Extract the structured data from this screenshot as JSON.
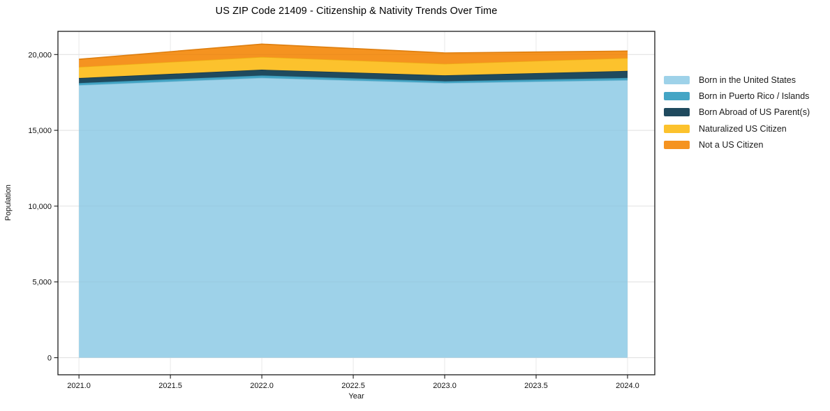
{
  "chart_data": {
    "type": "area",
    "stacked": true,
    "title": "US ZIP Code 21409 - Citizenship & Nativity Trends Over Time",
    "xlabel": "Year",
    "ylabel": "Population",
    "x": [
      2021,
      2022,
      2023,
      2024
    ],
    "series": [
      {
        "name": "Born in the United States",
        "color": "#9ED2E9",
        "edge": "#86C0DA",
        "values": [
          17980,
          18460,
          18120,
          18310
        ]
      },
      {
        "name": "Born in Puerto Rico / Islands",
        "color": "#44A5C5",
        "edge": "#3892B0",
        "values": [
          140,
          160,
          120,
          150
        ]
      },
      {
        "name": "Born Abroad of US Parent(s)",
        "color": "#1F4A5E",
        "edge": "#16384A",
        "values": [
          330,
          380,
          390,
          460
        ]
      },
      {
        "name": "Naturalized US Citizen",
        "color": "#FCC22D",
        "edge": "#EFAC15",
        "values": [
          730,
          840,
          760,
          850
        ]
      },
      {
        "name": "Not a US Citizen",
        "color": "#F59320",
        "edge": "#DE7E0E",
        "values": [
          510,
          850,
          715,
          460
        ]
      }
    ],
    "x_ticks": [
      2021.0,
      2021.5,
      2022.0,
      2022.5,
      2023.0,
      2023.5,
      2024.0
    ],
    "x_tick_labels": [
      "2021.0",
      "2021.5",
      "2022.0",
      "2022.5",
      "2023.0",
      "2023.5",
      "2024.0"
    ],
    "y_ticks": [
      0,
      5000,
      10000,
      15000,
      20000
    ],
    "y_tick_labels": [
      "0",
      "5,000",
      "10,000",
      "15,000",
      "20,000"
    ],
    "xlim": [
      2020.885,
      2024.149
    ],
    "ylim": [
      -1126,
      21530
    ],
    "grid": true,
    "legend_position": "right-outside",
    "background": "#ffffff",
    "grid_color": "#e8e8e8",
    "spine_color": "#1a1a1a"
  }
}
